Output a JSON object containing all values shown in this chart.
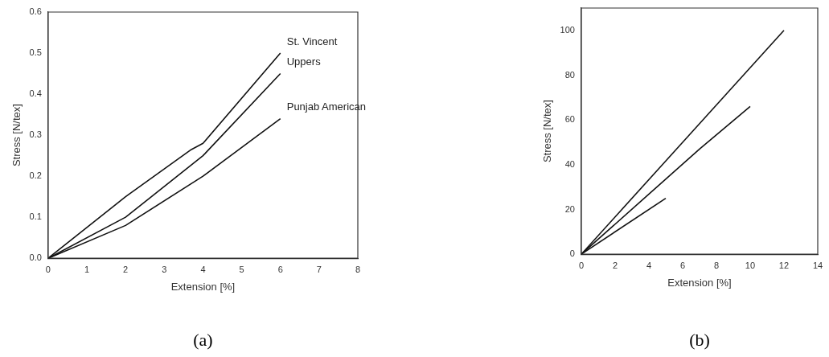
{
  "chart_data": [
    {
      "type": "line",
      "xlabel": "Extension [%]",
      "ylabel": "Stress [N/tex]",
      "xlim": [
        0,
        8
      ],
      "xticks": [
        0,
        1,
        2,
        3,
        4,
        5,
        6,
        7,
        8
      ],
      "ylim": [
        0,
        0.6
      ],
      "yticks": [
        {
          "value": 0,
          "label": "0.0"
        },
        0.1,
        0.2,
        0.3,
        0.4,
        0.5,
        0.6
      ],
      "marker": "none",
      "line_style": "solid",
      "annotations": [
        "(a)"
      ],
      "series": [
        {
          "name": "St. Vincent",
          "color": "#111111",
          "x": [
            0,
            2,
            3.7,
            4,
            6
          ],
          "values": [
            0,
            0.15,
            0.265,
            0.28,
            0.5
          ]
        },
        {
          "name": "Uppers",
          "color": "#111111",
          "x": [
            0,
            2,
            4,
            6
          ],
          "values": [
            0,
            0.1,
            0.25,
            0.45
          ]
        },
        {
          "name": "Punjab American",
          "color": "#111111",
          "x": [
            0,
            2,
            4,
            6
          ],
          "values": [
            0,
            0.08,
            0.2,
            0.34
          ]
        }
      ]
    },
    {
      "type": "line",
      "xlabel": "Extension [%]",
      "ylabel": "Stress [N/tex]",
      "xlim": [
        0,
        14
      ],
      "xticks": [
        0,
        2,
        4,
        6,
        8,
        10,
        12,
        14
      ],
      "ylim": [
        0,
        110
      ],
      "yticks": [
        0,
        20,
        40,
        60,
        80,
        100
      ],
      "marker": "none",
      "line_style": "solid",
      "annotations": [
        "(b)"
      ],
      "series": [
        {
          "color": "#111111",
          "x": [
            0,
            6,
            12
          ],
          "values": [
            0,
            50,
            100
          ]
        },
        {
          "color": "#111111",
          "x": [
            0,
            7,
            10
          ],
          "values": [
            0,
            47,
            66
          ]
        },
        {
          "color": "#111111",
          "x": [
            0,
            5
          ],
          "values": [
            0,
            25
          ]
        }
      ]
    }
  ]
}
